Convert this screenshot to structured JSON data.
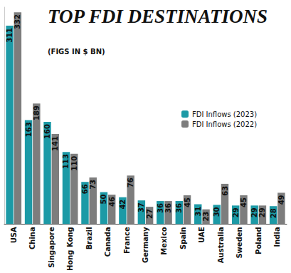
{
  "chart_data": {
    "type": "bar",
    "title": "TOP FDI DESTINATIONS",
    "subtitle": "(FIGS IN $ BN)",
    "categories": [
      "USA",
      "China",
      "Singapore",
      "Hong Kong",
      "Brazil",
      "Canada",
      "France",
      "Germany",
      "Mexico",
      "Spain",
      "UAE",
      "Australia",
      "Sweden",
      "Poland",
      "India"
    ],
    "series": [
      {
        "name": "FDI Inflows (2023)",
        "color": "#1c9aa6",
        "values": [
          311,
          163,
          160,
          113,
          66,
          50,
          42,
          37,
          36,
          36,
          31,
          30,
          29,
          29,
          28
        ]
      },
      {
        "name": "FDI Inflows (2022)",
        "color": "#7d7d7d",
        "values": [
          332,
          189,
          141,
          110,
          73,
          46,
          76,
          27,
          36,
          45,
          23,
          63,
          45,
          29,
          49
        ]
      }
    ],
    "ylim": [
      0,
      340
    ],
    "grid": false,
    "legend": "right",
    "data_labels": true,
    "tick_labels": "x"
  }
}
